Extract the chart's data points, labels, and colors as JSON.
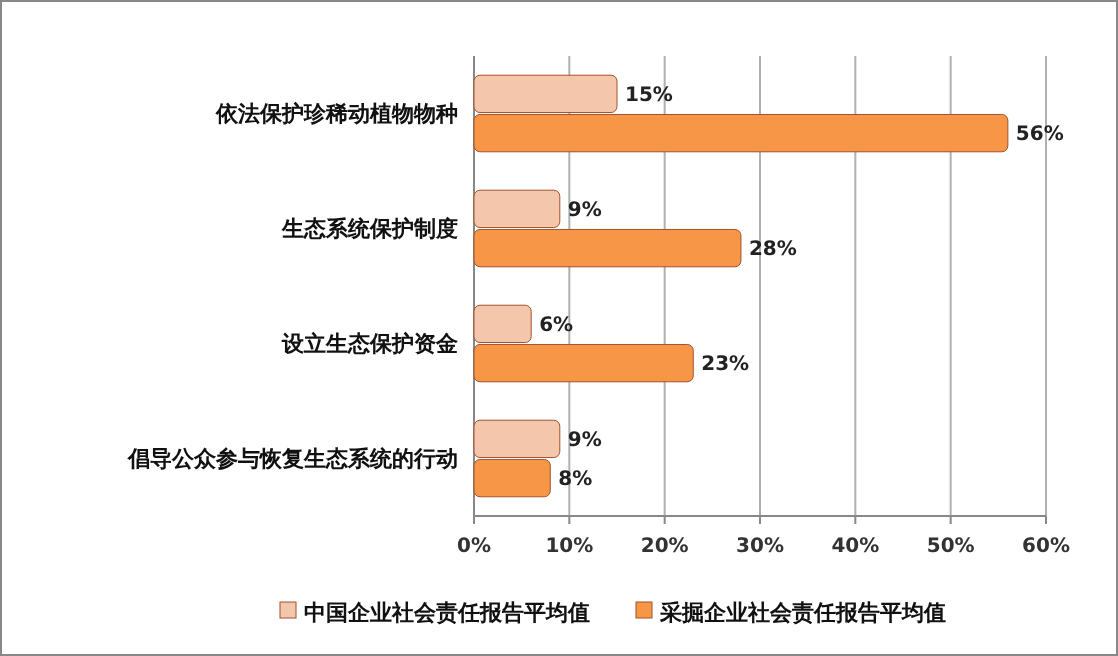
{
  "chart_data": {
    "type": "bar",
    "orientation": "horizontal",
    "categories": [
      "依法保护珍稀动植物物种",
      "生态系统保护制度",
      "设立生态保护资金",
      "倡导公众参与恢复生态系统的行动"
    ],
    "series": [
      {
        "name": "中国企业社会责任报告平均值",
        "color": "#f4c7ad",
        "values": [
          15,
          9,
          6,
          9
        ],
        "value_labels": [
          "15%",
          "9%",
          "6%",
          "9%"
        ]
      },
      {
        "name": "采掘企业社会责任报告平均值",
        "color": "#f79646",
        "values": [
          56,
          28,
          23,
          8
        ],
        "value_labels": [
          "56%",
          "28%",
          "23%",
          "8%"
        ]
      }
    ],
    "xlim": [
      0,
      60
    ],
    "xticks": [
      {
        "value": 0,
        "label": "0%"
      },
      {
        "value": 10,
        "label": "10%"
      },
      {
        "value": 20,
        "label": "20%"
      },
      {
        "value": 30,
        "label": "30%"
      },
      {
        "value": 40,
        "label": "40%"
      },
      {
        "value": 50,
        "label": "50%"
      },
      {
        "value": 60,
        "label": "60%"
      }
    ],
    "grid": "x",
    "legend": "bottom"
  }
}
